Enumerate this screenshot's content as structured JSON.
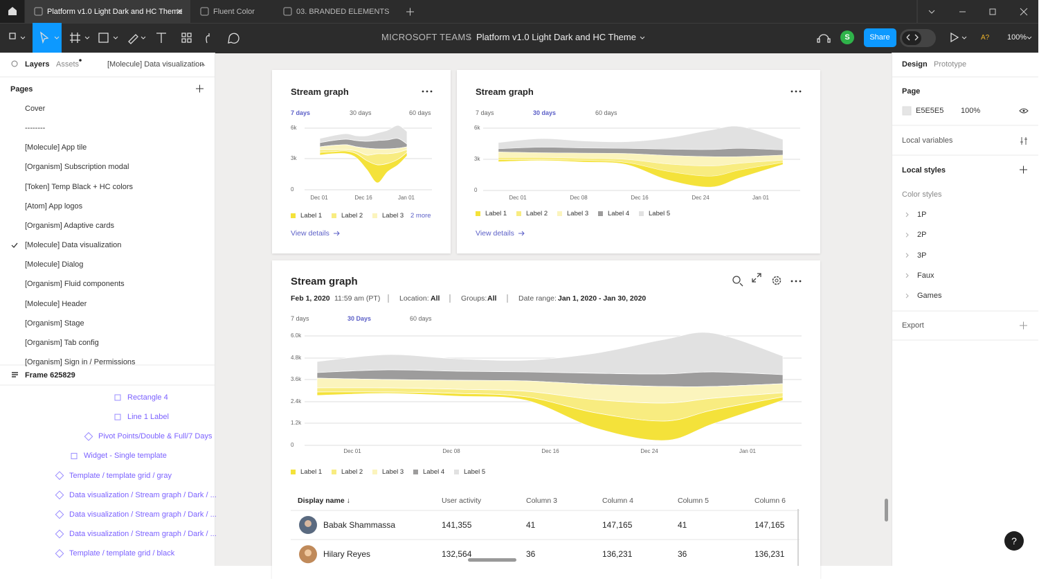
{
  "tabs": [
    "Platform v1.0 Light Dark and HC Theme",
    "Fluent Color",
    "03. BRANDED ELEMENTS"
  ],
  "toolbar": {
    "project": "MICROSOFT TEAMS",
    "separator": "/",
    "file": "Platform v1.0 Light Dark and HC Theme",
    "avatar": "S",
    "share": "Share",
    "font_status": "A?",
    "zoom": "100%"
  },
  "left_panel": {
    "tabs": [
      "Layers",
      "Assets"
    ],
    "current_page": "[Molecule] Data visualization",
    "pages_title": "Pages",
    "pages": [
      "Cover",
      "--------",
      "[Molecule] App tile",
      "[Organism] Subscription modal",
      "[Token] Temp Black + HC colors",
      "[Atom] App logos",
      "[Organism] Adaptive cards",
      "[Molecule] Data visualization",
      "[Molecule] Dialog",
      "[Organism] Fluid components",
      "[Molecule] Header",
      "[Organism] Stage",
      "[Organism] Tab config",
      "[Organism] Sign in / Permissions"
    ],
    "frame": "Frame 625829",
    "layers": [
      "Rectangle 4",
      "Line 1 Label",
      "Pivot Points/Double & Full/7 Days",
      "Widget - Single template",
      "Template / template grid / gray",
      "Data visualization / Stream graph / Dark / ...",
      "Data visualization / Stream graph / Dark / ...",
      "Data visualization / Stream graph / Dark / ...",
      "Template / template grid / black"
    ]
  },
  "right_panel": {
    "tabs": [
      "Design",
      "Prototype"
    ],
    "page_title": "Page",
    "page_color": "E5E5E5",
    "page_opacity": "100%",
    "local_variables": "Local variables",
    "local_styles": "Local styles",
    "color_styles_title": "Color styles",
    "color_styles": [
      "1P",
      "2P",
      "3P",
      "Faux",
      "Games"
    ],
    "export": "Export"
  },
  "cards": [
    {
      "title": "Stream graph",
      "ranges": [
        "7 days",
        "30 days",
        "60 days"
      ],
      "active_range": 0,
      "yticks": [
        "6k",
        "3k",
        "0"
      ],
      "xlabels": [
        "Dec 01",
        "Dec 16",
        "Jan 01"
      ],
      "legend": [
        {
          "name": "Label 1",
          "color": "#f4e23a"
        },
        {
          "name": "Label 2",
          "color": "#f8ec80"
        },
        {
          "name": "Label 3",
          "color": "#fbf4bd"
        }
      ],
      "more": "2 more",
      "link": "View details"
    },
    {
      "title": "Stream graph",
      "ranges": [
        "7 days",
        "30 days",
        "60 days"
      ],
      "active_range": 1,
      "yticks": [
        "6k",
        "3k",
        "0"
      ],
      "xlabels": [
        "Dec 01",
        "Dec 08",
        "Dec 16",
        "Dec 24",
        "Jan 01"
      ],
      "legend": [
        {
          "name": "Label 1",
          "color": "#f4e23a"
        },
        {
          "name": "Label 2",
          "color": "#f8ec80"
        },
        {
          "name": "Label 3",
          "color": "#fbf4bd"
        },
        {
          "name": "Label 4",
          "color": "#9d9c9c"
        },
        {
          "name": "Label 5",
          "color": "#e1e1e1"
        }
      ],
      "link": "View details"
    },
    {
      "title": "Stream graph",
      "meta": {
        "date": "Feb 1, 2020",
        "time": "11:59 am (PT)",
        "location_label": "Location:",
        "location": "All",
        "groups_label": "Groups:",
        "groups": "All",
        "range_label": "Date range:",
        "range": "Jan 1, 2020 - Jan 30, 2020"
      },
      "ranges": [
        "7 days",
        "30 Days",
        "60 days"
      ],
      "active_range": 1,
      "yticks": [
        "6.0k",
        "4.8k",
        "3.6k",
        "2.4k",
        "1.2k",
        "0"
      ],
      "xlabels": [
        "Dec 01",
        "Dec 08",
        "Dec 16",
        "Dec 24",
        "Jan 01"
      ],
      "legend": [
        {
          "name": "Label 1",
          "color": "#f4e23a"
        },
        {
          "name": "Label 2",
          "color": "#f8ec80"
        },
        {
          "name": "Label 3",
          "color": "#fbf4bd"
        },
        {
          "name": "Label 4",
          "color": "#9d9c9c"
        },
        {
          "name": "Label 5",
          "color": "#e1e1e1"
        }
      ],
      "table": {
        "headers": [
          "Display name ↓",
          "User activity",
          "Column 3",
          "Column 4",
          "Column 5",
          "Column 6"
        ],
        "rows": [
          [
            "Babak Shammassa",
            "141,355",
            "41",
            "147,165",
            "41",
            "147,165"
          ],
          [
            "Hilary Reyes",
            "132,564",
            "36",
            "136,231",
            "36",
            "136,231"
          ]
        ]
      }
    }
  ],
  "help": "?"
}
